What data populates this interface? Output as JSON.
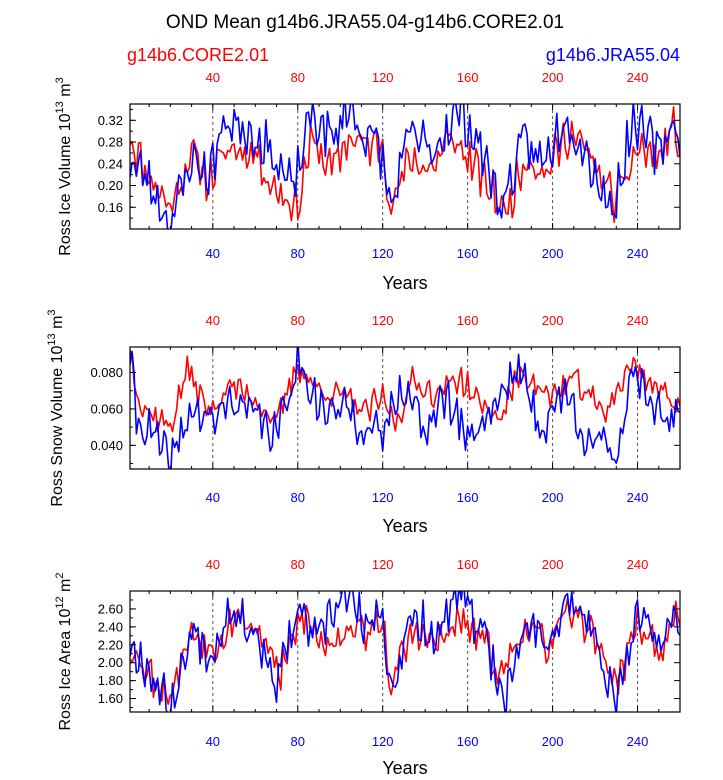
{
  "figure": {
    "title": "OND Mean g14b6.JRA55.04-g14b6.CORE2.01",
    "legend_left": "g14b6.CORE2.01",
    "legend_right": "g14b6.JRA55.04",
    "colors": {
      "core": "#ff0000",
      "jra": "#0000ff",
      "grid": "#555555",
      "axis": "#000000"
    }
  },
  "chart_data": [
    {
      "type": "line",
      "ylabel_main": "Ross Ice Volume 10",
      "ylabel_exp": "13",
      "ylabel_unit": "m",
      "ylabel_unit_exp": "3",
      "xlabel": "Years",
      "xlim": [
        1,
        260
      ],
      "ylim": [
        0.12,
        0.35
      ],
      "yticks": [
        0.16,
        0.2,
        0.24,
        0.28,
        0.32
      ],
      "ytick_labels": [
        "0.16",
        "0.20",
        "0.24",
        "0.28",
        "0.32"
      ],
      "xticks": [
        40,
        80,
        120,
        160,
        200,
        240
      ],
      "xtick_labels": [
        "40",
        "80",
        "120",
        "160",
        "200",
        "240"
      ],
      "series": [
        {
          "name": "g14b6.CORE2.01",
          "color": "#ff0000",
          "mean": 0.24,
          "amp": 0.04,
          "seed": 11,
          "anchors": [
            [
              1,
              0.29
            ],
            [
              8,
              0.23
            ],
            [
              20,
              0.16
            ],
            [
              30,
              0.26
            ],
            [
              38,
              0.21
            ],
            [
              48,
              0.27
            ],
            [
              60,
              0.26
            ],
            [
              68,
              0.2
            ],
            [
              80,
              0.16
            ],
            [
              86,
              0.28
            ],
            [
              97,
              0.23
            ],
            [
              104,
              0.29
            ],
            [
              114,
              0.27
            ],
            [
              120,
              0.28
            ],
            [
              124,
              0.16
            ],
            [
              133,
              0.25
            ],
            [
              143,
              0.23
            ],
            [
              152,
              0.29
            ],
            [
              162,
              0.24
            ],
            [
              178,
              0.15
            ],
            [
              188,
              0.26
            ],
            [
              196,
              0.22
            ],
            [
              208,
              0.3
            ],
            [
              216,
              0.26
            ],
            [
              230,
              0.17
            ],
            [
              240,
              0.27
            ],
            [
              250,
              0.25
            ],
            [
              258,
              0.31
            ],
            [
              260,
              0.25
            ]
          ]
        },
        {
          "name": "g14b6.JRA55.04",
          "color": "#0000ff",
          "mean": 0.25,
          "amp": 0.045,
          "seed": 23,
          "anchors": [
            [
              1,
              0.24
            ],
            [
              8,
              0.22
            ],
            [
              20,
              0.13
            ],
            [
              30,
              0.25
            ],
            [
              38,
              0.22
            ],
            [
              46,
              0.32
            ],
            [
              58,
              0.3
            ],
            [
              66,
              0.27
            ],
            [
              78,
              0.19
            ],
            [
              86,
              0.33
            ],
            [
              98,
              0.28
            ],
            [
              102,
              0.35
            ],
            [
              112,
              0.29
            ],
            [
              118,
              0.28
            ],
            [
              124,
              0.16
            ],
            [
              133,
              0.3
            ],
            [
              143,
              0.26
            ],
            [
              156,
              0.34
            ],
            [
              166,
              0.27
            ],
            [
              176,
              0.16
            ],
            [
              186,
              0.28
            ],
            [
              196,
              0.24
            ],
            [
              206,
              0.33
            ],
            [
              216,
              0.26
            ],
            [
              228,
              0.15
            ],
            [
              238,
              0.32
            ],
            [
              250,
              0.26
            ],
            [
              258,
              0.33
            ],
            [
              260,
              0.24
            ]
          ]
        }
      ]
    },
    {
      "type": "line",
      "ylabel_main": "Ross Snow Volume 10",
      "ylabel_exp": "13",
      "ylabel_unit": "m",
      "ylabel_unit_exp": "3",
      "xlabel": "Years",
      "xlim": [
        1,
        260
      ],
      "ylim": [
        0.027,
        0.094
      ],
      "yticks": [
        0.04,
        0.06,
        0.08
      ],
      "ytick_labels": [
        "0.040",
        "0.060",
        "0.080"
      ],
      "xticks": [
        40,
        80,
        120,
        160,
        200,
        240
      ],
      "xtick_labels": [
        "40",
        "80",
        "120",
        "160",
        "200",
        "240"
      ],
      "series": [
        {
          "name": "g14b6.CORE2.01",
          "color": "#ff0000",
          "mean": 0.065,
          "amp": 0.008,
          "seed": 37,
          "anchors": [
            [
              1,
              0.093
            ],
            [
              6,
              0.062
            ],
            [
              20,
              0.05
            ],
            [
              28,
              0.082
            ],
            [
              38,
              0.058
            ],
            [
              48,
              0.073
            ],
            [
              60,
              0.066
            ],
            [
              70,
              0.052
            ],
            [
              80,
              0.084
            ],
            [
              90,
              0.07
            ],
            [
              100,
              0.068
            ],
            [
              112,
              0.058
            ],
            [
              120,
              0.066
            ],
            [
              126,
              0.052
            ],
            [
              134,
              0.075
            ],
            [
              146,
              0.068
            ],
            [
              156,
              0.078
            ],
            [
              166,
              0.062
            ],
            [
              176,
              0.055
            ],
            [
              185,
              0.082
            ],
            [
              198,
              0.066
            ],
            [
              210,
              0.076
            ],
            [
              224,
              0.058
            ],
            [
              238,
              0.085
            ],
            [
              248,
              0.072
            ],
            [
              260,
              0.062
            ]
          ]
        },
        {
          "name": "g14b6.JRA55.04",
          "color": "#0000ff",
          "mean": 0.057,
          "amp": 0.012,
          "seed": 41,
          "anchors": [
            [
              1,
              0.093
            ],
            [
              4,
              0.055
            ],
            [
              12,
              0.045
            ],
            [
              20,
              0.03
            ],
            [
              30,
              0.06
            ],
            [
              40,
              0.052
            ],
            [
              48,
              0.066
            ],
            [
              60,
              0.056
            ],
            [
              70,
              0.045
            ],
            [
              80,
              0.087
            ],
            [
              92,
              0.058
            ],
            [
              104,
              0.06
            ],
            [
              112,
              0.048
            ],
            [
              120,
              0.045
            ],
            [
              128,
              0.075
            ],
            [
              140,
              0.05
            ],
            [
              150,
              0.066
            ],
            [
              160,
              0.045
            ],
            [
              170,
              0.058
            ],
            [
              184,
              0.084
            ],
            [
              194,
              0.048
            ],
            [
              206,
              0.07
            ],
            [
              214,
              0.048
            ],
            [
              230,
              0.033
            ],
            [
              238,
              0.084
            ],
            [
              250,
              0.058
            ],
            [
              260,
              0.052
            ]
          ]
        }
      ]
    },
    {
      "type": "line",
      "ylabel_main": "Ross Ice Area 10",
      "ylabel_exp": "12",
      "ylabel_unit": "m",
      "ylabel_unit_exp": "2",
      "xlabel": "Years",
      "xlim": [
        1,
        260
      ],
      "ylim": [
        1.45,
        2.8
      ],
      "yticks": [
        1.6,
        1.8,
        2.0,
        2.2,
        2.4,
        2.6
      ],
      "ytick_labels": [
        "1.60",
        "1.80",
        "2.00",
        "2.20",
        "2.40",
        "2.60"
      ],
      "xticks": [
        40,
        80,
        120,
        160,
        200,
        240
      ],
      "xtick_labels": [
        "40",
        "80",
        "120",
        "160",
        "200",
        "240"
      ],
      "series": [
        {
          "name": "g14b6.CORE2.01",
          "color": "#ff0000",
          "mean": 2.2,
          "amp": 0.22,
          "seed": 53,
          "anchors": [
            [
              1,
              2.2
            ],
            [
              8,
              1.95
            ],
            [
              20,
              1.65
            ],
            [
              30,
              2.35
            ],
            [
              40,
              2.15
            ],
            [
              50,
              2.55
            ],
            [
              62,
              2.35
            ],
            [
              72,
              1.85
            ],
            [
              82,
              2.55
            ],
            [
              92,
              2.2
            ],
            [
              104,
              2.4
            ],
            [
              114,
              2.35
            ],
            [
              120,
              2.45
            ],
            [
              124,
              1.75
            ],
            [
              134,
              2.35
            ],
            [
              146,
              2.2
            ],
            [
              156,
              2.45
            ],
            [
              166,
              2.3
            ],
            [
              176,
              1.85
            ],
            [
              186,
              2.4
            ],
            [
              198,
              2.2
            ],
            [
              208,
              2.55
            ],
            [
              218,
              2.4
            ],
            [
              230,
              1.75
            ],
            [
              240,
              2.45
            ],
            [
              252,
              2.1
            ],
            [
              260,
              2.6
            ]
          ]
        },
        {
          "name": "g14b6.JRA55.04",
          "color": "#0000ff",
          "mean": 2.2,
          "amp": 0.25,
          "seed": 67,
          "anchors": [
            [
              1,
              2.2
            ],
            [
              8,
              2.0
            ],
            [
              20,
              1.48
            ],
            [
              30,
              2.35
            ],
            [
              40,
              2.1
            ],
            [
              48,
              2.65
            ],
            [
              60,
              2.35
            ],
            [
              70,
              1.78
            ],
            [
              80,
              2.55
            ],
            [
              90,
              2.25
            ],
            [
              102,
              2.78
            ],
            [
              112,
              2.4
            ],
            [
              120,
              2.48
            ],
            [
              124,
              1.7
            ],
            [
              134,
              2.5
            ],
            [
              146,
              2.3
            ],
            [
              156,
              2.78
            ],
            [
              166,
              2.35
            ],
            [
              178,
              1.6
            ],
            [
              188,
              2.5
            ],
            [
              198,
              2.25
            ],
            [
              208,
              2.7
            ],
            [
              218,
              2.4
            ],
            [
              230,
              1.52
            ],
            [
              240,
              2.55
            ],
            [
              252,
              2.15
            ],
            [
              258,
              2.68
            ],
            [
              260,
              2.2
            ]
          ]
        }
      ]
    }
  ]
}
